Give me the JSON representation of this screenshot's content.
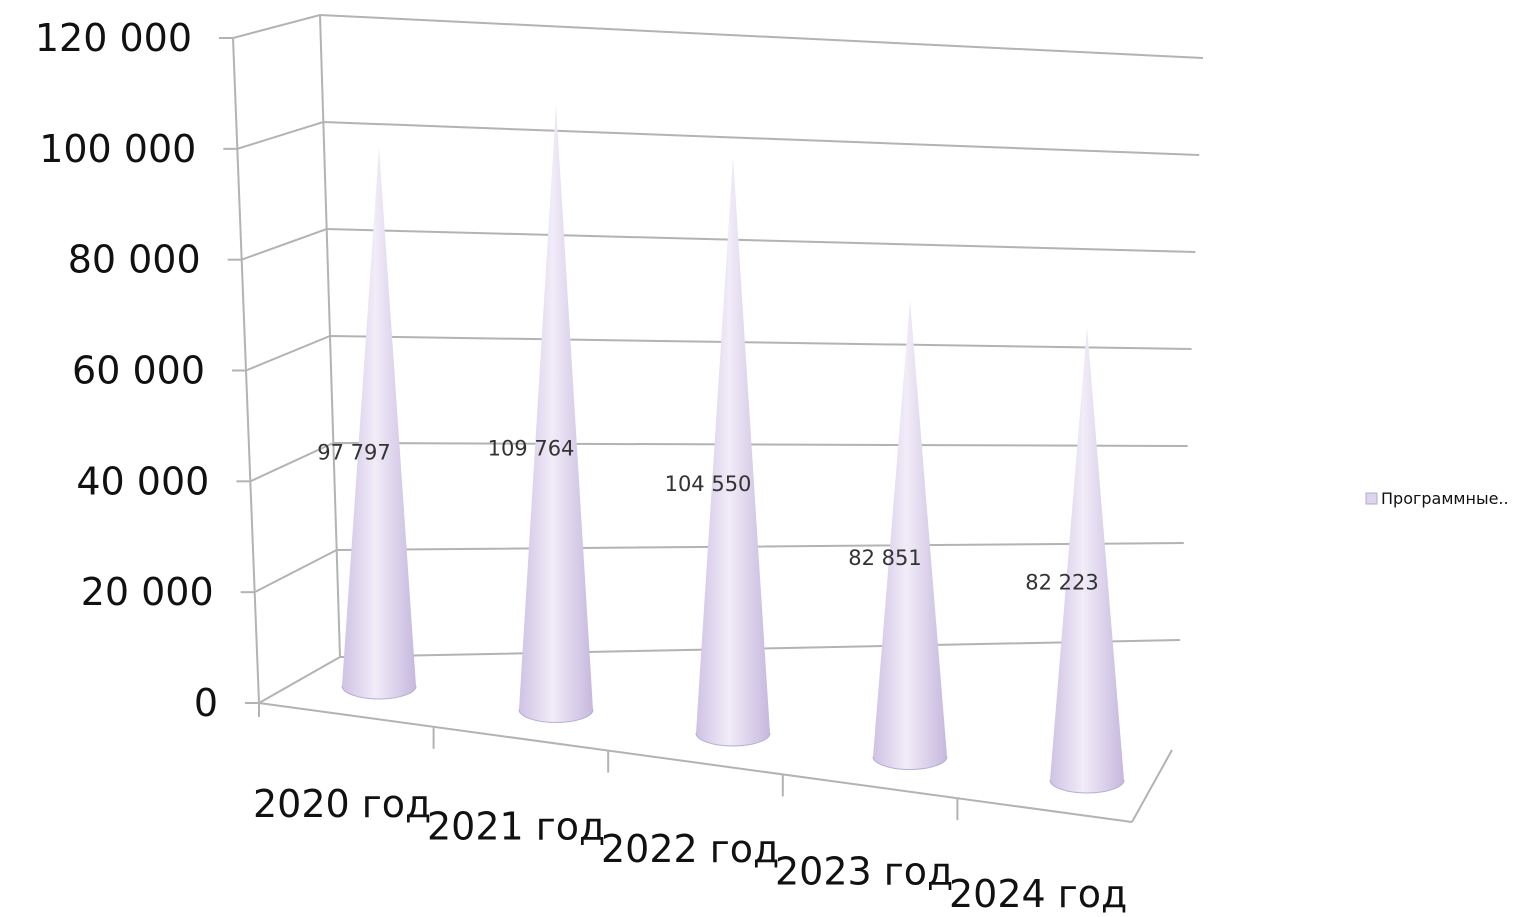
{
  "chart_data": {
    "type": "bar",
    "subtype": "3d-cone",
    "categories": [
      "2020 год",
      "2021 год",
      "2022 год",
      "2023 год",
      "2024 год"
    ],
    "series": [
      {
        "name": "Программные..",
        "values": [
          97797,
          109764,
          104550,
          82851,
          82223
        ],
        "data_labels": [
          "97 797",
          "109 764",
          "104 550",
          "82 851",
          "82 223"
        ],
        "color": "#ddd4ee"
      }
    ],
    "y_ticks": [
      0,
      20000,
      40000,
      60000,
      80000,
      100000,
      120000
    ],
    "y_tick_labels": [
      "0",
      "20 000",
      "40 000",
      "60 000",
      "80 000",
      "100 000",
      "120 000"
    ],
    "ylim": [
      0,
      120000
    ],
    "grid": true,
    "legend_position": "right"
  }
}
